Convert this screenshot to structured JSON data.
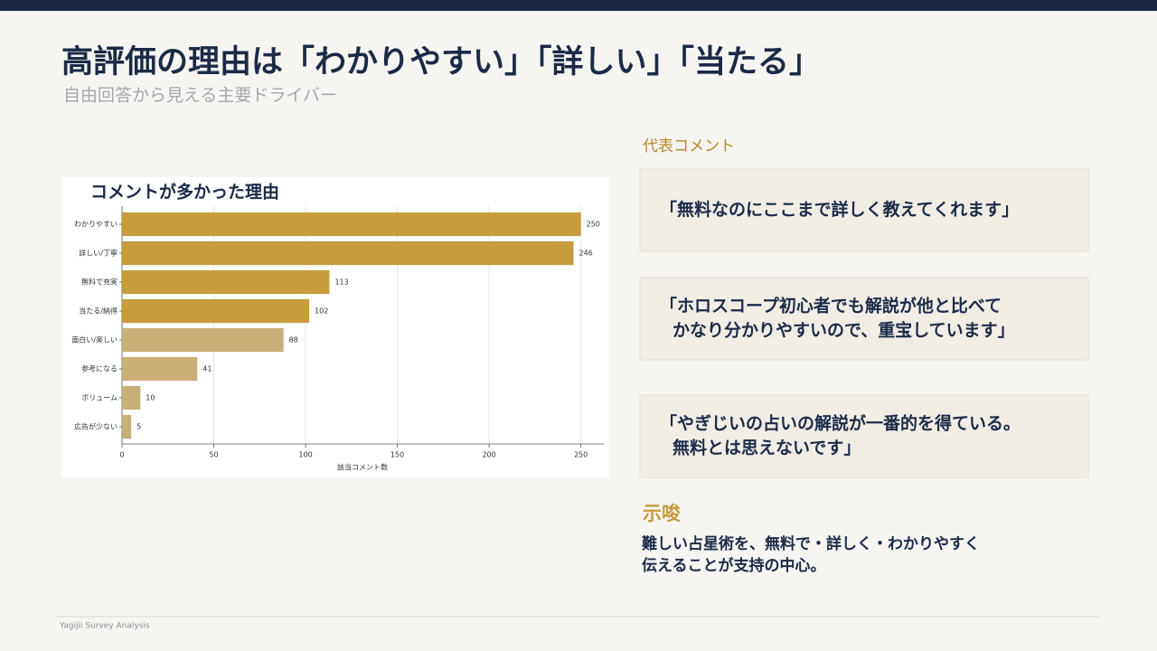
{
  "header": {
    "title": "高評価の理由は「わかりやすい」「詳しい」「当たる」",
    "subtitle": "自由回答から見える主要ドライバー"
  },
  "chart_data": {
    "type": "hbar",
    "title": "コメントが多かった理由",
    "x_label": "該当コメント数",
    "categories": [
      "わかりやすい",
      "詳しい/丁寧",
      "無料で充実",
      "当たる/納得",
      "面白い/楽しい",
      "参考になる",
      "ボリューム",
      "広告が少ない"
    ],
    "values": [
      250,
      246,
      113,
      102,
      88,
      41,
      10,
      5
    ],
    "colors": [
      "#c69c3c",
      "#c69c3c",
      "#c69c3c",
      "#c69c3c",
      "#c9ae78",
      "#c9ae78",
      "#c9ae78",
      "#c9ae78"
    ],
    "xlim": [
      0,
      262.5
    ],
    "xticks": [
      0,
      50,
      100,
      150,
      200,
      250
    ],
    "grid": true
  },
  "comments": {
    "heading": "代表コメント",
    "items": [
      {
        "lines": [
          "「無料なのにここまで詳しく教えてくれます」"
        ]
      },
      {
        "lines": [
          "「ホロスコープ初心者でも解説が他と比べて",
          "かなり分かりやすいので、重宝しています」"
        ]
      },
      {
        "lines": [
          "「やぎじいの占いの解説が一番的を得ている。",
          "無料とは思えないです」"
        ]
      }
    ]
  },
  "implication": {
    "heading": "示唆",
    "lines": [
      "難しい占星術を、無料で・詳しく・わかりやすく",
      "伝えることが支持の中心。"
    ]
  },
  "footer": "Yagijii Survey Analysis"
}
